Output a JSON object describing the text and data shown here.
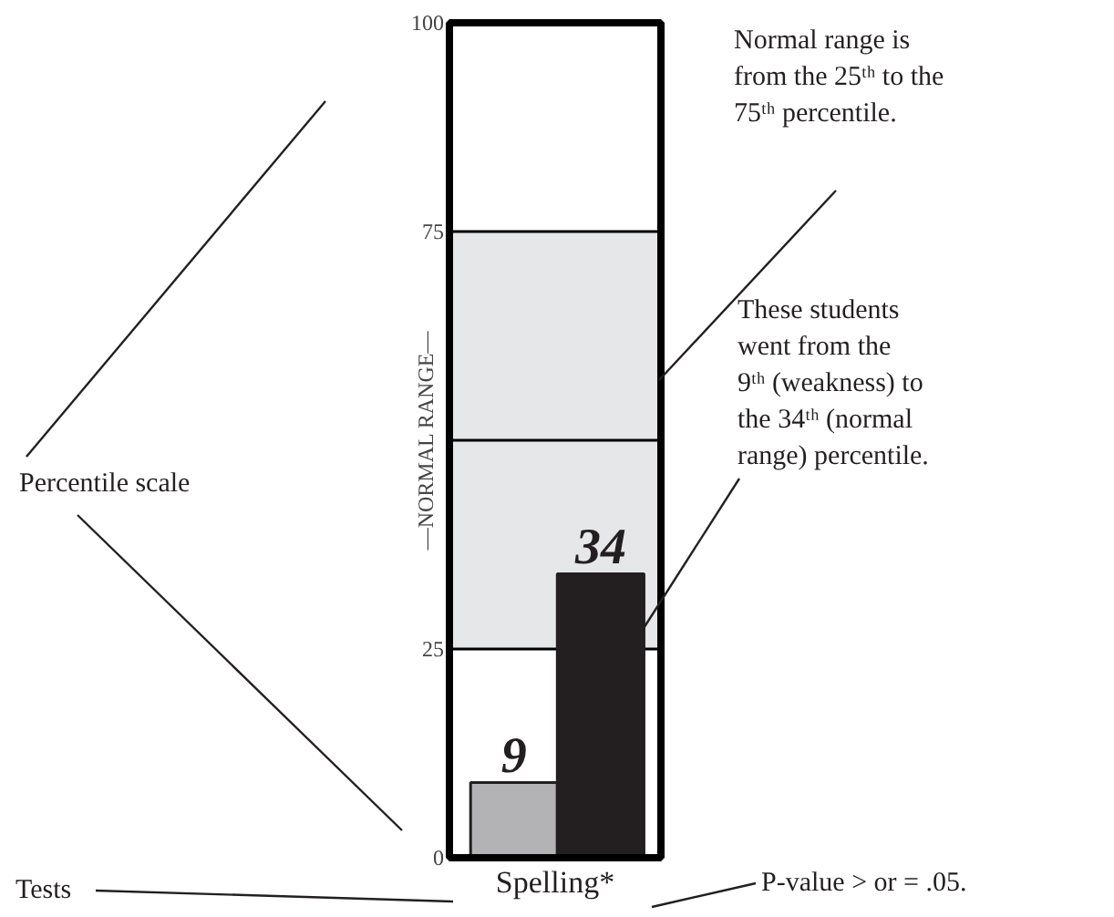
{
  "chart_data": {
    "type": "bar",
    "categories": [
      "Spelling*"
    ],
    "series": [
      {
        "color": "#b3b3b6",
        "values": [
          9
        ]
      },
      {
        "color": "#231f20",
        "values": [
          34
        ]
      }
    ],
    "ylim": [
      0,
      100
    ],
    "yticks": [
      0,
      25,
      {
        "value": 50,
        "label": null
      },
      75,
      100
    ],
    "grid": "y",
    "data_labels": true,
    "bands": [
      {
        "axis": "y",
        "from": 25,
        "to": 75,
        "label": "—NORMAL RANGE—",
        "color": "#e6e7e8"
      }
    ],
    "annotations": [
      "Normal range is\nfrom the 25ᵗʰ to the\n75ᵗʰ percentile.",
      "These students\nwent from the\n9ᵗʰ (weakness) to\nthe 34ᵗʰ (normal\nrange) percentile.",
      "Percentile scale",
      "Tests",
      "P-value > or = .05."
    ]
  }
}
